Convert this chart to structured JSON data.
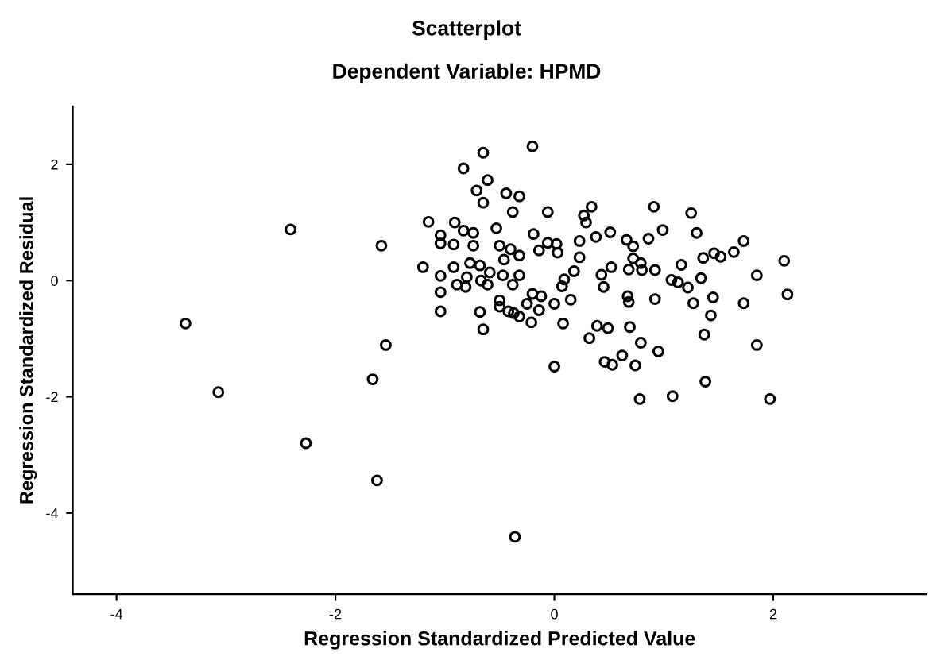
{
  "chart_data": {
    "type": "scatter",
    "title": "Scatterplot",
    "subtitle": "Dependent Variable: HPMD",
    "xlabel": "Regression Standardized Predicted Value",
    "ylabel": "Regression Standardized Residual",
    "xlim": [
      -4.4,
      3.4
    ],
    "ylim": [
      -5.4,
      3.0
    ],
    "xticks": [
      -4,
      -2,
      0,
      2
    ],
    "yticks": [
      -4,
      -2,
      0,
      2
    ],
    "grid": false,
    "marker": "circle",
    "series": [
      {
        "color": "#000000",
        "x": [
          -0.2,
          -0.65,
          -0.83,
          -0.61,
          -0.71,
          -0.44,
          -0.32,
          -0.65,
          -0.38,
          -0.06,
          0.34,
          0.27,
          0.29,
          0.91,
          1.25,
          -1.15,
          -0.91,
          -0.83,
          -0.74,
          -0.53,
          -1.04,
          -1.04,
          -0.92,
          -0.74,
          -0.5,
          -0.4,
          -0.32,
          -0.46,
          -0.19,
          -0.06,
          0.02,
          -0.14,
          0.03,
          0.23,
          0.38,
          0.51,
          0.23,
          0.66,
          0.72,
          0.86,
          0.99,
          1.3,
          1.73,
          1.64,
          1.46,
          1.52,
          1.36,
          2.1,
          0.72,
          0.79,
          0.68,
          0.8,
          0.92,
          1.16,
          0.52,
          0.43,
          -1.2,
          -0.92,
          -1.04,
          -1.04,
          -1.04,
          -0.77,
          -0.68,
          -0.59,
          -0.8,
          -0.89,
          -0.81,
          -0.67,
          -0.61,
          -0.47,
          -0.32,
          -0.38,
          0.18,
          0.09,
          0.07,
          0.45,
          1.07,
          1.13,
          1.22,
          1.34,
          1.85,
          2.13,
          1.45,
          1.27,
          1.73,
          0.92,
          0.67,
          0.68,
          0.15,
          0.0,
          -0.2,
          -0.12,
          -0.25,
          -0.5,
          -0.5,
          -0.42,
          -0.37,
          -0.32,
          -0.14,
          -0.21,
          -0.68,
          -0.65,
          0.08,
          0.39,
          0.49,
          0.32,
          0.69,
          1.43,
          1.37,
          1.85,
          0.79,
          0.95,
          0.62,
          0.46,
          0.53,
          0.74,
          0.0,
          1.38,
          0.78,
          1.08,
          1.97,
          -0.36,
          -2.41,
          -1.58,
          -3.37,
          -1.54,
          -1.66,
          -3.07,
          -2.27,
          -1.62
        ],
        "values": [
          2.31,
          2.2,
          1.93,
          1.73,
          1.55,
          1.5,
          1.45,
          1.34,
          1.18,
          1.18,
          1.27,
          1.12,
          1.0,
          1.27,
          1.16,
          1.01,
          1.0,
          0.86,
          0.82,
          0.9,
          0.78,
          0.64,
          0.62,
          0.6,
          0.6,
          0.54,
          0.43,
          0.36,
          0.8,
          0.65,
          0.63,
          0.52,
          0.48,
          0.68,
          0.75,
          0.83,
          0.4,
          0.7,
          0.59,
          0.72,
          0.87,
          0.82,
          0.68,
          0.49,
          0.47,
          0.41,
          0.39,
          0.34,
          0.38,
          0.3,
          0.19,
          0.18,
          0.18,
          0.27,
          0.23,
          0.1,
          0.23,
          0.23,
          0.08,
          -0.2,
          -0.53,
          0.3,
          0.26,
          0.14,
          0.06,
          -0.07,
          -0.11,
          0.0,
          -0.07,
          0.09,
          0.09,
          -0.07,
          0.16,
          0.02,
          -0.1,
          -0.11,
          0.01,
          -0.03,
          -0.12,
          0.04,
          0.09,
          -0.24,
          -0.29,
          -0.39,
          -0.39,
          -0.32,
          -0.27,
          -0.37,
          -0.33,
          -0.4,
          -0.23,
          -0.27,
          -0.4,
          -0.34,
          -0.45,
          -0.53,
          -0.56,
          -0.62,
          -0.51,
          -0.72,
          -0.54,
          -0.84,
          -0.74,
          -0.78,
          -0.82,
          -0.99,
          -0.8,
          -0.6,
          -0.93,
          -1.11,
          -1.07,
          -1.22,
          -1.29,
          -1.4,
          -1.45,
          -1.46,
          -1.48,
          -1.74,
          -2.04,
          -1.99,
          -2.04,
          -4.41,
          0.88,
          0.6,
          -0.74,
          -1.11,
          -1.7,
          -1.92,
          -2.8,
          -3.44
        ]
      }
    ]
  }
}
